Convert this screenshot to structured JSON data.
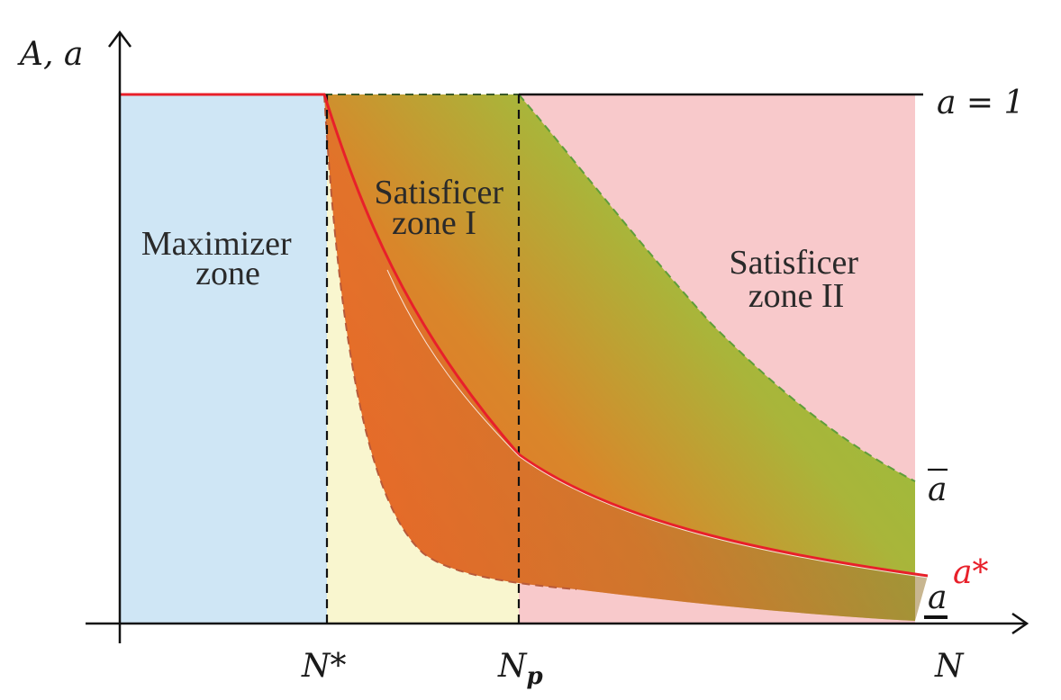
{
  "axes": {
    "y_label": "A, a",
    "x_label": "N"
  },
  "ticks": {
    "n_star": "N*",
    "n_p": "N",
    "n_p_sub": "p"
  },
  "zones": {
    "maximizer": [
      "Maximizer",
      "zone"
    ],
    "satisficer_1": [
      "Satisficer",
      "zone I"
    ],
    "satisficer_2": [
      "Satisficer",
      "zone II"
    ]
  },
  "curve_labels": {
    "a_equals_1": "a = 1",
    "a_bar": "a",
    "a_star": "a*",
    "a_under": "a"
  },
  "colors": {
    "maximizer_zone": "#cfe6f5",
    "satisficer_zone_1_low": "#f9f6cf",
    "satisficer_zone_2": "#f8c9cb",
    "band_green": "#8cc63f",
    "band_orange": "#ee6a25",
    "a_star_curve": "#e8202a",
    "axis": "#111111"
  }
}
